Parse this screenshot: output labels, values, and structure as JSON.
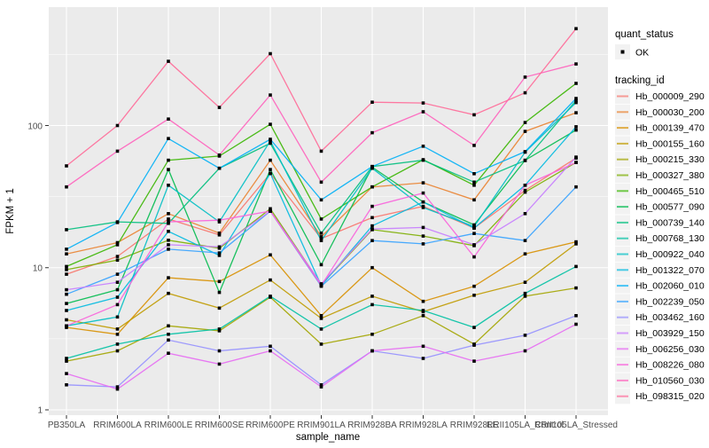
{
  "figure": {
    "y_axis": {
      "title": "FPKM + 1",
      "scale": "log10",
      "tick_labels": [
        "100",
        "10",
        "1"
      ]
    },
    "x_axis": {
      "title": "sample_name"
    },
    "legend": {
      "quant_status_title": "quant_status",
      "quant_status_items": [
        {
          "label": "OK",
          "shape": "black-square-point"
        }
      ],
      "tracking_title": "tracking_id"
    },
    "panel_color": "#EBEBEB",
    "gridline_color": "#FFFFFF",
    "tick_label_color": "#4D4D4D"
  },
  "chart_data": {
    "type": "line",
    "title": "",
    "xlabel": "sample_name",
    "ylabel": "FPKM + 1",
    "y_scale": "log10",
    "ylim": [
      1,
      600
    ],
    "y_major_ticks": [
      1,
      10,
      100
    ],
    "y_minor_gridlines": [
      3.162,
      31.62,
      316.2
    ],
    "grid": true,
    "legend_position": "right",
    "point_shape": "filled-black-square",
    "categories": [
      "PB350LA",
      "RRIM600LA",
      "RRIM600LE",
      "RRIM600SE",
      "RRIM600PE",
      "RRIM901LA",
      "RRIM928BA",
      "RRIM928LA",
      "RRIM928LE",
      "RRII105LA_Control",
      "RRII105LA_Stressed"
    ],
    "series": [
      {
        "name": "Hb_000009_290",
        "color": "#F8766D",
        "values": [
          9.0,
          12.0,
          22,
          17,
          46,
          16,
          22.5,
          27,
          19,
          35,
          59
        ]
      },
      {
        "name": "Hb_000030_200",
        "color": "#EA8331",
        "values": [
          12.5,
          15,
          24,
          17.5,
          57,
          16.5,
          37,
          39.5,
          30,
          91,
          123
        ]
      },
      {
        "name": "Hb_000139_470",
        "color": "#D89000",
        "values": [
          3.8,
          3.4,
          8.5,
          8.0,
          12.3,
          4.6,
          10,
          5.8,
          7.4,
          12.5,
          15.2
        ]
      },
      {
        "name": "Hb_000155_160",
        "color": "#C09B00",
        "values": [
          4.3,
          3.7,
          6.6,
          5.2,
          8.2,
          4.4,
          6.3,
          4.9,
          6.4,
          7.9,
          14.7
        ]
      },
      {
        "name": "Hb_000215_330",
        "color": "#A3A500",
        "values": [
          2.2,
          2.6,
          3.9,
          3.6,
          6.2,
          2.9,
          3.4,
          4.6,
          2.9,
          6.3,
          7.2
        ]
      },
      {
        "name": "Hb_000327_380",
        "color": "#7CAE00",
        "values": [
          9.7,
          11.3,
          15.6,
          13.7,
          26,
          7.6,
          18.5,
          16.7,
          14.3,
          34,
          55
        ]
      },
      {
        "name": "Hb_000465_510",
        "color": "#39B600",
        "values": [
          10.2,
          14.5,
          57,
          61,
          102,
          22,
          37,
          57.5,
          38,
          105,
          198
        ]
      },
      {
        "name": "Hb_000577_090",
        "color": "#00BB4E",
        "values": [
          5.6,
          7.0,
          49,
          6.7,
          49,
          10.5,
          51,
          29,
          20,
          57,
          93
        ]
      },
      {
        "name": "Hb_000739_140",
        "color": "#00BF7D",
        "values": [
          18.5,
          21,
          20.5,
          50,
          75,
          17.5,
          51.5,
          57,
          40,
          56.7,
          150
        ]
      },
      {
        "name": "Hb_000768_130",
        "color": "#00C1A3",
        "values": [
          2.3,
          2.9,
          3.4,
          3.7,
          6.3,
          3.7,
          5.5,
          5.0,
          3.8,
          6.6,
          10.2
        ]
      },
      {
        "name": "Hb_000922_040",
        "color": "#00BFC4",
        "values": [
          3.9,
          4.5,
          38,
          21,
          78,
          15.5,
          50,
          26.5,
          19.5,
          65,
          145
        ]
      },
      {
        "name": "Hb_001322_070",
        "color": "#00BAE0",
        "values": [
          5.0,
          6.2,
          18,
          12.2,
          46,
          7.5,
          19.7,
          29,
          19,
          38,
          98
        ]
      },
      {
        "name": "Hb_002060_010",
        "color": "#00B0F6",
        "values": [
          13.5,
          20.8,
          81,
          50,
          80,
          30,
          51.5,
          71.5,
          45.8,
          65.5,
          155
        ]
      },
      {
        "name": "Hb_002239_050",
        "color": "#35A2FF",
        "values": [
          6.5,
          9.0,
          13.5,
          12.7,
          25,
          7.4,
          15.5,
          14.7,
          17.4,
          15.5,
          37
        ]
      },
      {
        "name": "Hb_003462_160",
        "color": "#9590FF",
        "values": [
          1.5,
          1.45,
          3.1,
          2.6,
          2.8,
          1.5,
          2.6,
          2.3,
          2.85,
          3.35,
          4.6
        ]
      },
      {
        "name": "Hb_003929_150",
        "color": "#C77CFF",
        "values": [
          7.0,
          7.9,
          14.5,
          14.0,
          25,
          7.7,
          18.7,
          19.2,
          14.5,
          24,
          60
        ]
      },
      {
        "name": "Hb_006256_030",
        "color": "#E76BF3",
        "values": [
          1.8,
          1.4,
          2.5,
          2.1,
          2.6,
          1.45,
          2.6,
          2.8,
          2.2,
          2.6,
          4.0
        ]
      },
      {
        "name": "Hb_008226_080",
        "color": "#FA62DB",
        "values": [
          3.9,
          5.5,
          21,
          21.6,
          25,
          7.5,
          27,
          33.5,
          11.9,
          38,
          55
        ]
      },
      {
        "name": "Hb_010560_030",
        "color": "#FF62BC",
        "values": [
          37,
          66,
          111,
          62,
          164,
          40,
          89,
          125,
          72.5,
          219,
          271
        ]
      },
      {
        "name": "Hb_098315_020",
        "color": "#FF6A98",
        "values": [
          52,
          100,
          283,
          134,
          320,
          66,
          146,
          144,
          119,
          170,
          480
        ]
      }
    ]
  }
}
